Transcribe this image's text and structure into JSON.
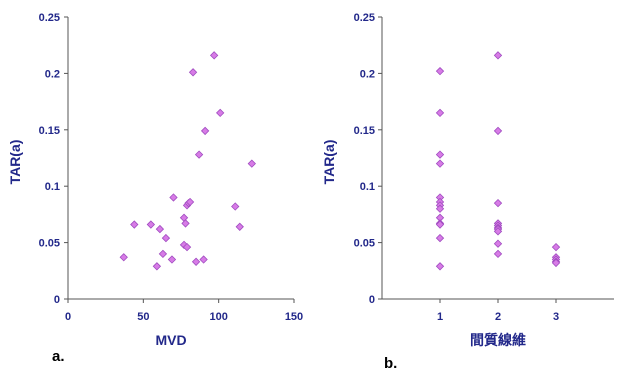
{
  "colors": {
    "marker_fill": "#d77be6",
    "marker_shade": "#a04cc0",
    "axis_text": "#22288a",
    "axis_line": "#555555"
  },
  "chart_data": [
    {
      "type": "scatter",
      "panel_label": "a.",
      "xlabel": "MVD",
      "ylabel": "TAR(a)",
      "xlim": [
        0,
        150
      ],
      "ylim": [
        0,
        0.25
      ],
      "x_ticks": [
        "0",
        "50",
        "100",
        "150"
      ],
      "y_ticks": [
        "0",
        "0.05",
        "0.1",
        "0.15",
        "0.2",
        "0.25"
      ],
      "series": [
        {
          "points": [
            [
              37,
              0.037
            ],
            [
              44,
              0.066
            ],
            [
              55,
              0.066
            ],
            [
              59,
              0.029
            ],
            [
              61,
              0.062
            ],
            [
              63,
              0.04
            ],
            [
              65,
              0.054
            ],
            [
              69,
              0.035
            ],
            [
              70,
              0.09
            ],
            [
              77,
              0.072
            ],
            [
              77,
              0.048
            ],
            [
              78,
              0.067
            ],
            [
              79,
              0.046
            ],
            [
              79,
              0.083
            ],
            [
              80,
              0.085
            ],
            [
              81,
              0.086
            ],
            [
              83,
              0.201
            ],
            [
              85,
              0.033
            ],
            [
              87,
              0.128
            ],
            [
              90,
              0.035
            ],
            [
              91,
              0.149
            ],
            [
              97,
              0.216
            ],
            [
              101,
              0.165
            ],
            [
              111,
              0.082
            ],
            [
              114,
              0.064
            ],
            [
              122,
              0.12
            ]
          ]
        }
      ],
      "grid": false,
      "legend": "none"
    },
    {
      "type": "scatter",
      "panel_label": "b.",
      "xlabel": "間質線維",
      "ylabel": "TAR(a)",
      "xlim": [
        0,
        4
      ],
      "ylim": [
        0,
        0.25
      ],
      "x_ticks": [
        "1",
        "2",
        "3"
      ],
      "y_ticks": [
        "0",
        "0.05",
        "0.1",
        "0.15",
        "0.2",
        "0.25"
      ],
      "series": [
        {
          "points": [
            [
              1,
              0.202
            ],
            [
              1,
              0.165
            ],
            [
              1,
              0.128
            ],
            [
              1,
              0.12
            ],
            [
              1,
              0.09
            ],
            [
              1,
              0.086
            ],
            [
              1,
              0.083
            ],
            [
              1,
              0.08
            ],
            [
              1,
              0.072
            ],
            [
              1,
              0.067
            ],
            [
              1,
              0.066
            ],
            [
              1,
              0.054
            ],
            [
              1,
              0.029
            ],
            [
              2,
              0.216
            ],
            [
              2,
              0.149
            ],
            [
              2,
              0.085
            ],
            [
              2,
              0.067
            ],
            [
              2,
              0.065
            ],
            [
              2,
              0.063
            ],
            [
              2,
              0.062
            ],
            [
              2,
              0.06
            ],
            [
              2,
              0.049
            ],
            [
              2,
              0.04
            ],
            [
              3,
              0.046
            ],
            [
              3,
              0.037
            ],
            [
              3,
              0.035
            ],
            [
              3,
              0.033
            ],
            [
              3,
              0.032
            ]
          ]
        }
      ],
      "grid": false,
      "legend": "none"
    }
  ]
}
